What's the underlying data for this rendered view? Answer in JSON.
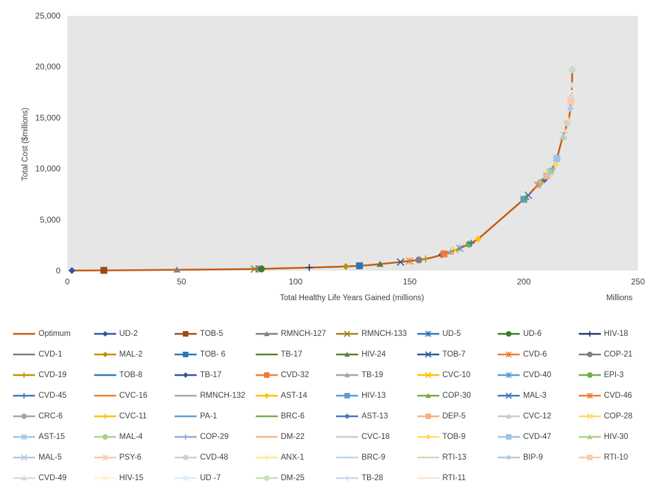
{
  "chart_data": {
    "type": "line",
    "title": "",
    "xlabel": "Total Healthy Life Years Gained (millions)",
    "ylabel": "Total Cost ($millions)",
    "x_unit_label": "Millions",
    "xlim": [
      0,
      250
    ],
    "ylim": [
      0,
      25000
    ],
    "x_ticks": [
      "0",
      "50",
      "100",
      "150",
      "200",
      "250"
    ],
    "y_ticks": [
      "0",
      "5,000",
      "10,000",
      "15,000",
      "20,000",
      "25,000"
    ],
    "grid": false,
    "plot_background": "#e6e6e6",
    "legend_position": "bottom",
    "line_color": "#c55a11",
    "series": [
      {
        "name": "Optimum",
        "marker": "line",
        "color": "#c55a11"
      },
      {
        "name": "UD-2",
        "marker": "diamond",
        "color": "#2f5597",
        "x": 2,
        "y": 10
      },
      {
        "name": "TOB-5",
        "marker": "square",
        "color": "#9c4a12",
        "x": 16,
        "y": 30
      },
      {
        "name": "RMNCH-127",
        "marker": "triangle",
        "color": "#7f7f7f",
        "x": 48,
        "y": 90
      },
      {
        "name": "RMNCH-133",
        "marker": "x",
        "color": "#9e8010",
        "x": 82,
        "y": 160
      },
      {
        "name": "UD-5",
        "marker": "star",
        "color": "#2e75b6",
        "x": 84,
        "y": 170
      },
      {
        "name": "UD-6",
        "marker": "circle",
        "color": "#3e7b28",
        "x": 85,
        "y": 175
      },
      {
        "name": "HIV-18",
        "marker": "plus",
        "color": "#1f3864",
        "x": 106,
        "y": 300
      },
      {
        "name": "CVD-1",
        "marker": "line",
        "color": "#7f7f7f",
        "x": 118,
        "y": 380
      },
      {
        "name": "MAL-2",
        "marker": "diamond",
        "color": "#bf9000",
        "x": 122,
        "y": 410
      },
      {
        "name": "TOB- 6",
        "marker": "square",
        "color": "#2e75b6",
        "x": 128,
        "y": 480
      },
      {
        "name": "TB-17",
        "marker": "line",
        "color": "#548235",
        "x": 132,
        "y": 540
      },
      {
        "name": "HIV-24",
        "marker": "triangle",
        "color": "#548235",
        "x": 137,
        "y": 650
      },
      {
        "name": "TOB-7",
        "marker": "x",
        "color": "#2f5597",
        "x": 146,
        "y": 850
      },
      {
        "name": "CVD-6",
        "marker": "star",
        "color": "#ed7d31",
        "x": 150,
        "y": 950
      },
      {
        "name": "COP-21",
        "marker": "circle",
        "color": "#7f7f7f",
        "x": 154,
        "y": 1050
      },
      {
        "name": "CVD-19",
        "marker": "plus",
        "color": "#bf9000",
        "x": 157,
        "y": 1150
      },
      {
        "name": "TOB-8",
        "marker": "line",
        "color": "#2e75b6",
        "x": 160,
        "y": 1300
      },
      {
        "name": "TB-17",
        "marker": "diamond",
        "color": "#2f5597",
        "x": 164,
        "y": 1550
      },
      {
        "name": "CVD-32",
        "marker": "square",
        "color": "#ed7d31",
        "x": 165,
        "y": 1650
      },
      {
        "name": "TB-19",
        "marker": "triangle",
        "color": "#a5a5a5",
        "x": 168,
        "y": 1850
      },
      {
        "name": "CVC-10",
        "marker": "x",
        "color": "#ffc000",
        "x": 170,
        "y": 2000
      },
      {
        "name": "CVD-40",
        "marker": "star",
        "color": "#5b9bd5",
        "x": 172,
        "y": 2200
      },
      {
        "name": "EPI-3",
        "marker": "circle",
        "color": "#70ad47",
        "x": 176,
        "y": 2600
      },
      {
        "name": "CVD-45",
        "marker": "plus",
        "color": "#4472c4",
        "x": 177,
        "y": 2700
      },
      {
        "name": "CVC-16",
        "marker": "line",
        "color": "#ed7d31",
        "x": 178,
        "y": 2850
      },
      {
        "name": "RMNCH-132",
        "marker": "line",
        "color": "#a5a5a5",
        "x": 179,
        "y": 2950
      },
      {
        "name": "AST-14",
        "marker": "diamond",
        "color": "#ffc000",
        "x": 180,
        "y": 3100
      },
      {
        "name": "HIV-13",
        "marker": "square",
        "color": "#5b9bd5",
        "x": 200,
        "y": 7000
      },
      {
        "name": "COP-30",
        "marker": "triangle",
        "color": "#70ad47",
        "x": 201,
        "y": 7200
      },
      {
        "name": "MAL-3",
        "marker": "x",
        "color": "#4472c4",
        "x": 202,
        "y": 7400
      },
      {
        "name": "CVD-46",
        "marker": "star",
        "color": "#ed7d31",
        "x": 206,
        "y": 8400
      },
      {
        "name": "CRC-6",
        "marker": "circle",
        "color": "#a5a5a5",
        "x": 207,
        "y": 8600
      },
      {
        "name": "CVC-11",
        "marker": "plus",
        "color": "#ffc000",
        "x": 207.5,
        "y": 8700
      },
      {
        "name": "PA-1",
        "marker": "line",
        "color": "#5b9bd5",
        "x": 208,
        "y": 8800
      },
      {
        "name": "BRC-6",
        "marker": "line",
        "color": "#70ad47",
        "x": 208.5,
        "y": 8850
      },
      {
        "name": "AST-13",
        "marker": "diamond",
        "color": "#4472c4",
        "x": 209,
        "y": 8900
      },
      {
        "name": "DEP-5",
        "marker": "square",
        "color": "#f4b183",
        "x": 210,
        "y": 9300
      },
      {
        "name": "CVC-12",
        "marker": "triangle",
        "color": "#c9c9c9",
        "x": 210.5,
        "y": 9500
      },
      {
        "name": "COP-28",
        "marker": "x",
        "color": "#ffd966",
        "x": 211,
        "y": 9600
      },
      {
        "name": "AST-15",
        "marker": "star",
        "color": "#9dc3e6",
        "x": 211.5,
        "y": 9700
      },
      {
        "name": "MAL-4",
        "marker": "circle",
        "color": "#a9d18e",
        "x": 212,
        "y": 9800
      },
      {
        "name": "COP-29",
        "marker": "plus",
        "color": "#8faadc",
        "x": 212.5,
        "y": 10000
      },
      {
        "name": "DM-22",
        "marker": "line",
        "color": "#f4b183",
        "x": 213,
        "y": 10200
      },
      {
        "name": "CVC-18",
        "marker": "line",
        "color": "#c9c9c9",
        "x": 213.5,
        "y": 10300
      },
      {
        "name": "TOB-9",
        "marker": "diamond",
        "color": "#ffd966",
        "x": 214,
        "y": 10400
      },
      {
        "name": "CVD-47",
        "marker": "square",
        "color": "#9dc3e6",
        "x": 214.5,
        "y": 11000
      },
      {
        "name": "HIV-30",
        "marker": "triangle",
        "color": "#a9d18e",
        "x": 217,
        "y": 13100
      },
      {
        "name": "MAL-5",
        "marker": "x",
        "color": "#b4c7e7",
        "x": 217.5,
        "y": 13300
      },
      {
        "name": "PSY-6",
        "marker": "star",
        "color": "#f8cbad",
        "x": 218,
        "y": 13700
      },
      {
        "name": "CVD-48",
        "marker": "circle",
        "color": "#d0d0d0",
        "x": 219,
        "y": 14500
      },
      {
        "name": "ANX-1",
        "marker": "plus",
        "color": "#ffe699",
        "x": 219.5,
        "y": 14800
      },
      {
        "name": "BRC-9",
        "marker": "line",
        "color": "#bdd7ee",
        "x": 220,
        "y": 15200
      },
      {
        "name": "RTI-13",
        "marker": "line",
        "color": "#c5e0b4",
        "x": 220.2,
        "y": 15600
      },
      {
        "name": "BIP-9",
        "marker": "diamond",
        "color": "#b4c7e7",
        "x": 220.4,
        "y": 15900
      },
      {
        "name": "RTI-10",
        "marker": "square",
        "color": "#f8cbad",
        "x": 220.6,
        "y": 16600
      },
      {
        "name": "CVD-49",
        "marker": "triangle",
        "color": "#d9d9d9",
        "x": 220.8,
        "y": 17200
      },
      {
        "name": "HIV-15",
        "marker": "x",
        "color": "#fff2cc",
        "x": 221,
        "y": 17600
      },
      {
        "name": "UD -7",
        "marker": "star",
        "color": "#deebf7",
        "x": 221.1,
        "y": 18200
      },
      {
        "name": "DM-25",
        "marker": "circle",
        "color": "#c5e0b4",
        "x": 221.2,
        "y": 19700
      },
      {
        "name": "TB-28",
        "marker": "plus",
        "color": "#c8d4ee",
        "x": 221.3,
        "y": 19800
      },
      {
        "name": "RTI-11",
        "marker": "line",
        "color": "#fbe5d6",
        "x": 221.4,
        "y": 19900
      }
    ]
  }
}
